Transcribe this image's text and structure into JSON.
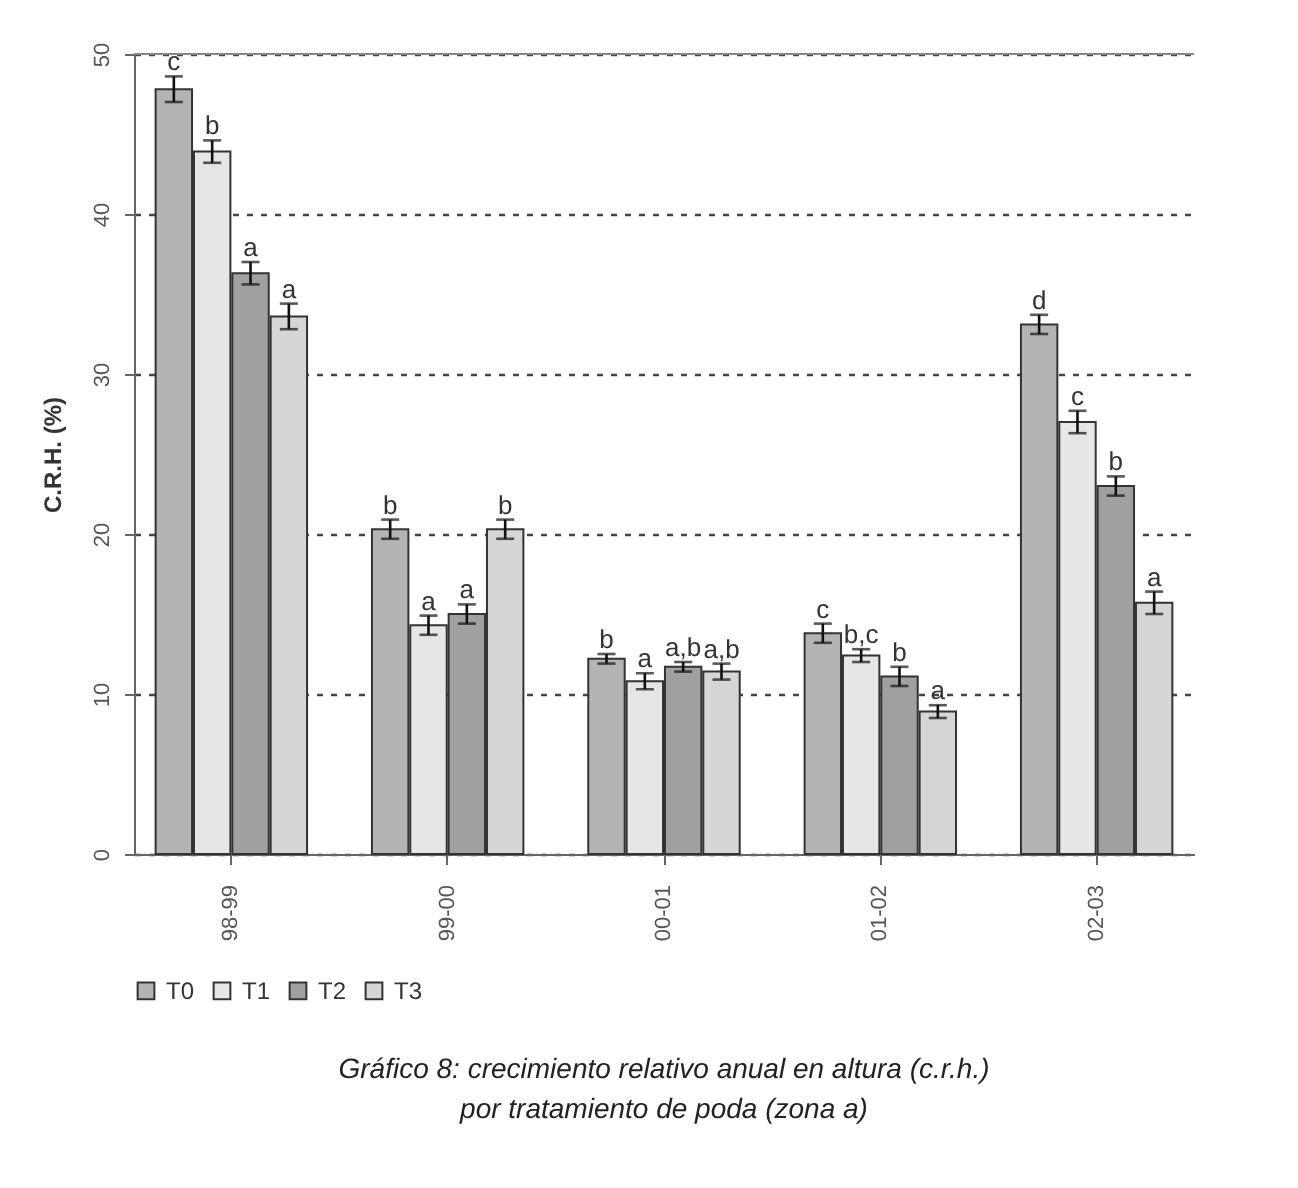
{
  "chart_data": {
    "type": "bar",
    "title": "Gráfico 8: crecimiento relativo anual en altura (c.r.h.) por tratamiento de poda (zona a)",
    "ylabel": "C.R.H. (%)",
    "categories": [
      "98-99",
      "99-00",
      "00-01",
      "01-02",
      "02-03"
    ],
    "series": [
      {
        "name": "T0",
        "color": "#b4b4b4",
        "values": [
          47.8,
          20.3,
          12.2,
          13.8,
          33.1
        ],
        "errors": [
          0.8,
          0.6,
          0.3,
          0.6,
          0.6
        ],
        "value_labels": [
          "c",
          "b",
          "b",
          "c",
          "d"
        ]
      },
      {
        "name": "T1",
        "color": "#e6e6e6",
        "values": [
          43.9,
          14.3,
          10.8,
          12.4,
          27.0
        ],
        "errors": [
          0.7,
          0.6,
          0.5,
          0.4,
          0.7
        ],
        "value_labels": [
          "b",
          "a",
          "a",
          "b,c",
          "c"
        ]
      },
      {
        "name": "T2",
        "color": "#a0a0a0",
        "values": [
          36.3,
          15.0,
          11.7,
          11.1,
          23.0
        ],
        "errors": [
          0.7,
          0.6,
          0.3,
          0.6,
          0.6
        ],
        "value_labels": [
          "a",
          "a",
          "a,b",
          "b",
          "b"
        ]
      },
      {
        "name": "T3",
        "color": "#d6d6d6",
        "values": [
          33.6,
          20.3,
          11.4,
          8.9,
          15.7
        ],
        "errors": [
          0.8,
          0.6,
          0.5,
          0.4,
          0.7
        ],
        "value_labels": [
          "a",
          "b",
          "a,b",
          "a",
          "a"
        ]
      }
    ],
    "ylim": [
      0,
      50
    ],
    "yticks": [
      0,
      10,
      20,
      30,
      40,
      50
    ],
    "grid": "y",
    "legend": "bottom"
  }
}
